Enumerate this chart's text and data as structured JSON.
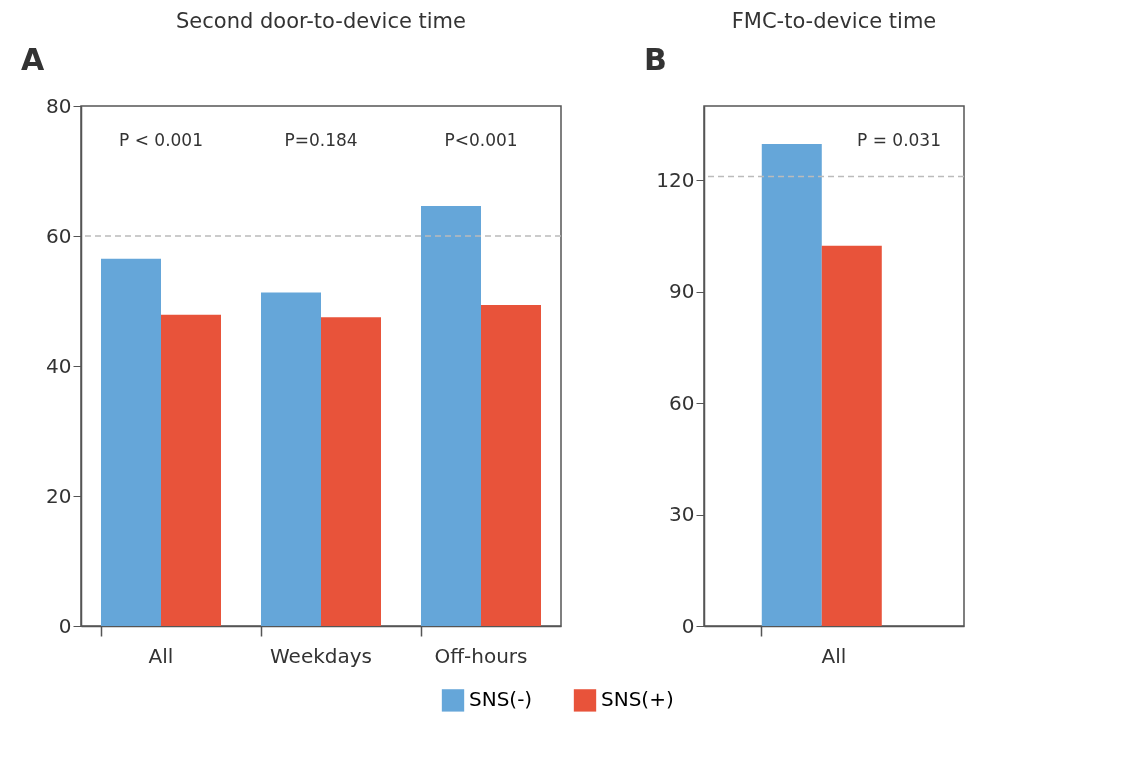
{
  "chart_data": [
    {
      "type": "bar",
      "title": "Second door-to-device time",
      "categories": [
        "All",
        "Weekdays",
        "Off-hours"
      ],
      "series": [
        {
          "name": "SNS(-)",
          "color": "#65a6d9",
          "values": [
            56.5,
            51.3,
            64.6
          ]
        },
        {
          "name": "SNS(+)",
          "color": "#e8533a",
          "values": [
            47.9,
            47.5,
            49.4
          ]
        }
      ],
      "ylim": [
        0,
        80
      ],
      "yticks": [
        0,
        20,
        40,
        60,
        80
      ],
      "grid": false,
      "legend": "bottom",
      "ref_lines": [
        {
          "axis": "y",
          "value": 60,
          "color": "#bbbbbb",
          "line_style": "dashed"
        }
      ],
      "annotations": [
        "A",
        "P < 0.001",
        "P=0.184",
        "P<0.001"
      ]
    },
    {
      "type": "bar",
      "title": "FMC-to-device time",
      "categories": [
        "All"
      ],
      "series": [
        {
          "name": "SNS(-)",
          "color": "#65a6d9",
          "values": [
            129.8
          ]
        },
        {
          "name": "SNS(+)",
          "color": "#e8533a",
          "values": [
            102.4
          ]
        }
      ],
      "ylim": [
        0,
        140
      ],
      "yticks": [
        0,
        30,
        60,
        90,
        120
      ],
      "grid": false,
      "legend": "bottom",
      "ref_lines": [
        {
          "axis": "y",
          "value": 121,
          "color": "#bbbbbb",
          "line_style": "dashed"
        }
      ],
      "annotations": [
        "B",
        "P = 0.031"
      ]
    }
  ]
}
